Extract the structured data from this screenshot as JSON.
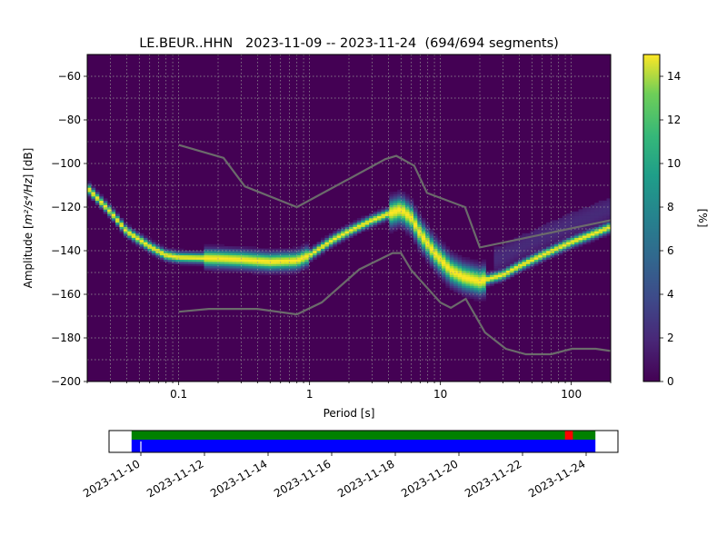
{
  "chart_data": [
    {
      "type": "heatmap",
      "title": "LE.BEUR..HHN   2023-11-09 -- 2023-11-24  (694/694 segments)",
      "xlabel": "Period [s]",
      "ylabel_prefix": "Amplitude [",
      "ylabel_unit": "m²/s⁴/Hz",
      "ylabel_suffix": "] [dB]",
      "x_scale": "log",
      "xlim": [
        0.02,
        200
      ],
      "ylim": [
        -200,
        -50
      ],
      "x_ticks": [
        {
          "value": 0.1,
          "label": "0.1"
        },
        {
          "value": 1,
          "label": "1"
        },
        {
          "value": 10,
          "label": "10"
        },
        {
          "value": 100,
          "label": "100"
        }
      ],
      "y_ticks": [
        {
          "value": -60,
          "label": "−60"
        },
        {
          "value": -80,
          "label": "−80"
        },
        {
          "value": -100,
          "label": "−100"
        },
        {
          "value": -120,
          "label": "−120"
        },
        {
          "value": -140,
          "label": "−140"
        },
        {
          "value": -160,
          "label": "−160"
        },
        {
          "value": -180,
          "label": "−180"
        },
        {
          "value": -200,
          "label": "−200"
        }
      ],
      "grid": true,
      "colormap": "viridis",
      "colorbar": {
        "label": "[%]",
        "range": [
          0,
          15
        ],
        "ticks": [
          {
            "value": 0,
            "label": "0"
          },
          {
            "value": 2,
            "label": "2"
          },
          {
            "value": 4,
            "label": "4"
          },
          {
            "value": 6,
            "label": "6"
          },
          {
            "value": 8,
            "label": "8"
          },
          {
            "value": 10,
            "label": "10"
          },
          {
            "value": 12,
            "label": "12"
          },
          {
            "value": 14,
            "label": "14"
          }
        ]
      },
      "mode_curve": [
        [
          0.02,
          -111
        ],
        [
          0.03,
          -122
        ],
        [
          0.04,
          -131
        ],
        [
          0.06,
          -138
        ],
        [
          0.08,
          -142
        ],
        [
          0.1,
          -143
        ],
        [
          0.2,
          -143.5
        ],
        [
          0.3,
          -144
        ],
        [
          0.5,
          -145
        ],
        [
          0.8,
          -144.5
        ],
        [
          1,
          -142
        ],
        [
          1.5,
          -135
        ],
        [
          2,
          -131
        ],
        [
          3,
          -126
        ],
        [
          4,
          -123
        ],
        [
          5,
          -121
        ],
        [
          6,
          -125
        ],
        [
          7,
          -132
        ],
        [
          9,
          -141
        ],
        [
          12,
          -149
        ],
        [
          15,
          -152
        ],
        [
          20,
          -154
        ],
        [
          30,
          -151
        ],
        [
          40,
          -147
        ],
        [
          60,
          -142
        ],
        [
          100,
          -136
        ],
        [
          150,
          -132
        ],
        [
          200,
          -129
        ]
      ],
      "upper_noise_model": [
        [
          0.1,
          -91.5
        ],
        [
          0.22,
          -97.4
        ],
        [
          0.32,
          -110.5
        ],
        [
          0.8,
          -120
        ],
        [
          3.8,
          -98
        ],
        [
          4.6,
          -96.5
        ],
        [
          6.3,
          -101
        ],
        [
          7.9,
          -113.5
        ],
        [
          15.4,
          -120
        ],
        [
          20,
          -138.5
        ],
        [
          200,
          -126
        ]
      ],
      "lower_noise_model": [
        [
          0.1,
          -168
        ],
        [
          0.17,
          -166.7
        ],
        [
          0.4,
          -166.7
        ],
        [
          0.8,
          -169.2
        ],
        [
          1.24,
          -163.7
        ],
        [
          2.4,
          -148.6
        ],
        [
          4.3,
          -141.1
        ],
        [
          5,
          -141.1
        ],
        [
          6,
          -149
        ],
        [
          10,
          -163.8
        ],
        [
          12,
          -166.2
        ],
        [
          15.6,
          -162.1
        ],
        [
          21.9,
          -177.5
        ],
        [
          31.6,
          -185
        ],
        [
          45,
          -187.5
        ],
        [
          70,
          -187.5
        ],
        [
          101,
          -185
        ],
        [
          154,
          -185
        ],
        [
          200,
          -186
        ]
      ]
    },
    {
      "type": "timeline",
      "x_ticks": [
        {
          "value": "2023-11-10",
          "label": "2023-11-10"
        },
        {
          "value": "2023-11-12",
          "label": "2023-11-12"
        },
        {
          "value": "2023-11-14",
          "label": "2023-11-14"
        },
        {
          "value": "2023-11-16",
          "label": "2023-11-16"
        },
        {
          "value": "2023-11-18",
          "label": "2023-11-18"
        },
        {
          "value": "2023-11-20",
          "label": "2023-11-20"
        },
        {
          "value": "2023-11-22",
          "label": "2023-11-22"
        },
        {
          "value": "2023-11-24",
          "label": "2023-11-24"
        }
      ],
      "xlim": [
        "2023-11-09T00:00",
        "2023-11-25T00:00"
      ],
      "data_coverage": {
        "start": "2023-11-09T17:00",
        "end": "2023-11-24T07:00",
        "color": "#0000ff"
      },
      "psd_coverage": {
        "start": "2023-11-09T17:00",
        "end": "2023-11-24T07:00",
        "color": "#008000"
      },
      "gaps": [
        "2023-11-10T00:00"
      ],
      "overlaps": [
        {
          "start": "2023-11-23T08:00",
          "end": "2023-11-23T14:00",
          "color": "#ff0000"
        }
      ]
    }
  ]
}
